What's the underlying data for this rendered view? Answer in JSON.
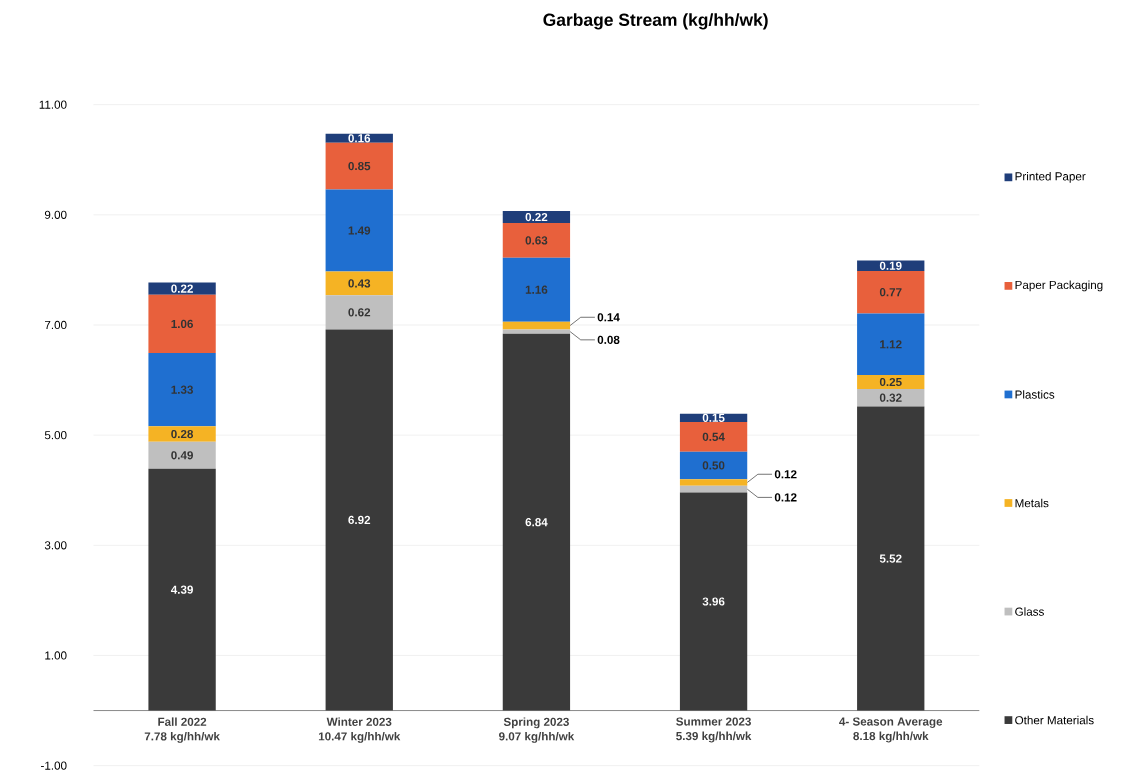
{
  "chart_data": {
    "type": "bar",
    "stacked": true,
    "title": "Garbage Stream (kg/hh/wk)",
    "categories": [
      "Fall 2022",
      "Winter 2023",
      "Spring 2023",
      "Summer 2023",
      "4- Season Average"
    ],
    "totals": [
      "7.78 kg/hh/wk",
      "10.47 kg/hh/wk",
      "9.07 kg/hh/wk",
      "5.39 kg/hh/wk",
      "8.18 kg/hh/wk"
    ],
    "series": [
      {
        "name": "Other Materials",
        "color": "#3a3a3a",
        "values": [
          4.39,
          6.92,
          6.84,
          3.96,
          5.52
        ],
        "value_labels": [
          "4.39",
          "6.92",
          "6.84",
          "3.96",
          "5.52"
        ]
      },
      {
        "name": "Glass",
        "color": "#bfbfbf",
        "values": [
          0.49,
          0.62,
          0.08,
          0.12,
          0.32
        ],
        "value_labels": [
          "0.49",
          "0.62",
          "0.08",
          "0.12",
          "0.32"
        ]
      },
      {
        "name": "Metals",
        "color": "#f5b324",
        "values": [
          0.28,
          0.43,
          0.14,
          0.12,
          0.25
        ],
        "value_labels": [
          "0.28",
          "0.43",
          "0.14",
          "0.12",
          "0.25"
        ]
      },
      {
        "name": "Plastics",
        "color": "#1f6fd0",
        "values": [
          1.33,
          1.49,
          1.16,
          0.5,
          1.12
        ],
        "value_labels": [
          "1.33",
          "1.49",
          "1.16",
          "0.50",
          "1.12"
        ]
      },
      {
        "name": "Paper Packaging",
        "color": "#e8603c",
        "values": [
          1.06,
          0.85,
          0.63,
          0.54,
          0.77
        ],
        "value_labels": [
          "1.06",
          "0.85",
          "0.63",
          "0.54",
          "0.77"
        ]
      },
      {
        "name": "Printed Paper",
        "color": "#1f3e7a",
        "values": [
          0.22,
          0.16,
          0.22,
          0.15,
          0.19
        ],
        "value_labels": [
          "0.22",
          "0.16",
          "0.22",
          "0.15",
          "0.19"
        ]
      }
    ],
    "ylim": [
      -1,
      11
    ],
    "yticks": [
      {
        "value": -1,
        "label": "-1.00"
      },
      {
        "value": 1,
        "label": "1.00"
      },
      {
        "value": 3,
        "label": "3.00"
      },
      {
        "value": 5,
        "label": "5.00"
      },
      {
        "value": 7,
        "label": "7.00"
      },
      {
        "value": 9,
        "label": "9.00"
      },
      {
        "value": 11,
        "label": "11.00"
      }
    ],
    "grid": "y",
    "legend": "right"
  }
}
